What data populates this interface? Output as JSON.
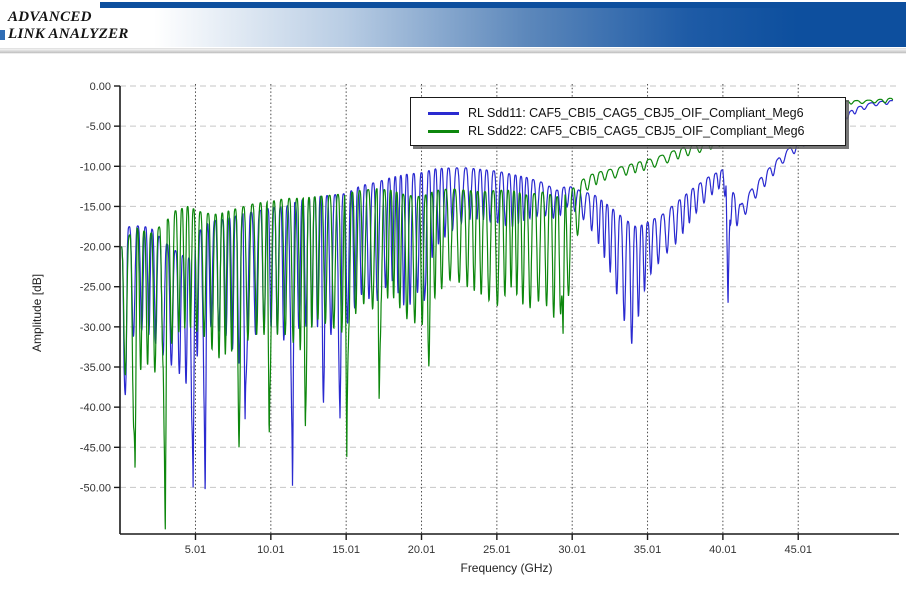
{
  "header": {
    "logo_line1": "ADVANCED",
    "logo_line2": "LINK ANALYZER",
    "banner_color": "#0d4f9e"
  },
  "chart_data": {
    "type": "line",
    "title": "",
    "xlabel": "Frequency (GHz)",
    "ylabel": "Amplitude [dB]",
    "grid": true,
    "legend_position": "top-center",
    "x_axis": {
      "label": "Frequency (GHz)",
      "tick_values": [
        5.01,
        10.01,
        15.01,
        20.01,
        25.01,
        30.01,
        35.01,
        40.01,
        45.01
      ],
      "tick_labels": [
        "5.01",
        "10.01",
        "15.01",
        "20.01",
        "25.01",
        "30.01",
        "35.01",
        "40.01",
        "45.01"
      ],
      "range_ghz": [
        0.01,
        51.3
      ]
    },
    "y_axis": {
      "label": "Amplitude [dB]",
      "tick_values": [
        0,
        -5,
        -10,
        -15,
        -20,
        -25,
        -30,
        -35,
        -40,
        -45,
        -50
      ],
      "tick_labels": [
        "0.00",
        "-5.00",
        "-10.00",
        "-15.00",
        "-20.00",
        "-25.00",
        "-30.00",
        "-35.00",
        "-40.00",
        "-45.00",
        "-50.00"
      ],
      "range_db": [
        -55.8,
        0
      ]
    },
    "series": [
      {
        "name": "RL Sdd11: CAF5_CBI5_CAG5_CBJ5_OIF_Compliant_Meg6",
        "color": "#2a2ad0",
        "description": "Return loss Sdd11, oscillatory; envelope values in dB vs GHz",
        "period_map": [
          [
            0,
            0.48
          ],
          [
            40,
            0.48
          ],
          [
            42,
            0.6
          ],
          [
            51.3,
            0.65
          ]
        ],
        "upper_envelope": [
          [
            0.1,
            -20
          ],
          [
            0.4,
            -17.6
          ],
          [
            1,
            -17.4
          ],
          [
            2,
            -17.6
          ],
          [
            3,
            -19.5
          ],
          [
            4,
            -21
          ],
          [
            4.7,
            -21.5
          ],
          [
            5.3,
            -18
          ],
          [
            6,
            -16.8
          ],
          [
            7,
            -16.6
          ],
          [
            8,
            -16
          ],
          [
            9,
            -15.6
          ],
          [
            10,
            -15.2
          ],
          [
            11,
            -15
          ],
          [
            12,
            -14.2
          ],
          [
            13,
            -13.8
          ],
          [
            14,
            -13.6
          ],
          [
            15,
            -13.4
          ],
          [
            16,
            -12.4
          ],
          [
            17,
            -12
          ],
          [
            18,
            -11.4
          ],
          [
            19,
            -11
          ],
          [
            20,
            -10.8
          ],
          [
            21,
            -10.3
          ],
          [
            22,
            -10.2
          ],
          [
            23,
            -10.2
          ],
          [
            24,
            -10.4
          ],
          [
            25,
            -10.6
          ],
          [
            26,
            -11
          ],
          [
            27,
            -11.4
          ],
          [
            28,
            -12
          ],
          [
            29,
            -13
          ],
          [
            29.7,
            -12.4
          ],
          [
            30.5,
            -13
          ],
          [
            31.5,
            -13.6
          ],
          [
            32.5,
            -15
          ],
          [
            33.5,
            -16.6
          ],
          [
            34.3,
            -17.6
          ],
          [
            35,
            -17
          ],
          [
            36,
            -16
          ],
          [
            37,
            -14.4
          ],
          [
            38,
            -12.8
          ],
          [
            39,
            -11.4
          ],
          [
            40,
            -10.4
          ],
          [
            40.6,
            -13
          ],
          [
            41.2,
            -14.8
          ],
          [
            42,
            -12.6
          ],
          [
            43,
            -10.4
          ],
          [
            44,
            -8.4
          ],
          [
            45,
            -6.8
          ],
          [
            46,
            -5.6
          ],
          [
            47,
            -4.6
          ],
          [
            48,
            -3.6
          ],
          [
            49,
            -2.6
          ],
          [
            50,
            -2
          ],
          [
            51.3,
            -1.8
          ]
        ],
        "lower_envelope": [
          [
            0.1,
            -33
          ],
          [
            0.4,
            -37
          ],
          [
            1,
            -30
          ],
          [
            2,
            -31
          ],
          [
            3,
            -34
          ],
          [
            4,
            -36
          ],
          [
            4.7,
            -38
          ],
          [
            5.3,
            -32
          ],
          [
            6,
            -30
          ],
          [
            7,
            -31
          ],
          [
            8,
            -35
          ],
          [
            9,
            -31
          ],
          [
            10,
            -30
          ],
          [
            11,
            -32
          ],
          [
            12,
            -30
          ],
          [
            13,
            -30
          ],
          [
            14,
            -31
          ],
          [
            15,
            -30
          ],
          [
            16,
            -26
          ],
          [
            17,
            -27
          ],
          [
            18,
            -24
          ],
          [
            19,
            -28
          ],
          [
            20,
            -25
          ],
          [
            21,
            -20
          ],
          [
            22,
            -18
          ],
          [
            23,
            -16.6
          ],
          [
            24,
            -16.6
          ],
          [
            25,
            -17
          ],
          [
            26,
            -17.6
          ],
          [
            27,
            -16.6
          ],
          [
            28,
            -16
          ],
          [
            29,
            -16.6
          ],
          [
            29.7,
            -15
          ],
          [
            30.5,
            -16
          ],
          [
            31.5,
            -18.5
          ],
          [
            32.5,
            -23
          ],
          [
            33.3,
            -28
          ],
          [
            33.9,
            -32.6
          ],
          [
            34.5,
            -28
          ],
          [
            35,
            -24
          ],
          [
            36,
            -21.4
          ],
          [
            37,
            -19.4
          ],
          [
            38,
            -16.4
          ],
          [
            39,
            -14
          ],
          [
            40,
            -12.4
          ],
          [
            40.6,
            -18
          ],
          [
            41.2,
            -17
          ],
          [
            42,
            -14.4
          ],
          [
            43,
            -12
          ],
          [
            44,
            -9.6
          ],
          [
            45,
            -8
          ],
          [
            46,
            -6.6
          ],
          [
            47,
            -5.4
          ],
          [
            48,
            -4.4
          ],
          [
            49,
            -3.2
          ],
          [
            50,
            -2.5
          ],
          [
            51.3,
            -2.2
          ]
        ],
        "notches": [
          [
            0.35,
            -38.5
          ],
          [
            4.85,
            -50
          ],
          [
            5.65,
            -51.3
          ],
          [
            8.3,
            -41.5
          ],
          [
            11.45,
            -49.8
          ],
          [
            13.5,
            -39.8
          ],
          [
            14.6,
            -41.4
          ],
          [
            20.2,
            -27
          ],
          [
            40.35,
            -27.6
          ]
        ]
      },
      {
        "name": "RL Sdd22: CAF5_CBI5_CAG5_CBJ5_OIF_Compliant_Meg6",
        "color": "#0d870d",
        "description": "Return loss Sdd22, oscillatory; envelope values in dB vs GHz",
        "period_map": [
          [
            0,
            0.48
          ],
          [
            30,
            0.5
          ],
          [
            32,
            0.7
          ],
          [
            51.3,
            0.7
          ]
        ],
        "upper_envelope": [
          [
            0.1,
            -20
          ],
          [
            1,
            -17.6
          ],
          [
            2,
            -18.4
          ],
          [
            3,
            -17
          ],
          [
            3.6,
            -15.6
          ],
          [
            4.5,
            -15
          ],
          [
            5.5,
            -15.8
          ],
          [
            6.5,
            -16
          ],
          [
            7.5,
            -15.4
          ],
          [
            9,
            -14.6
          ],
          [
            10,
            -14.4
          ],
          [
            11,
            -14
          ],
          [
            12,
            -14
          ],
          [
            13,
            -13.8
          ],
          [
            14,
            -13.6
          ],
          [
            15,
            -13.4
          ],
          [
            16,
            -13
          ],
          [
            17,
            -12.8
          ],
          [
            18,
            -13
          ],
          [
            19,
            -13.6
          ],
          [
            20,
            -13.8
          ],
          [
            21,
            -13
          ],
          [
            22,
            -12.8
          ],
          [
            23,
            -13
          ],
          [
            24,
            -13.2
          ],
          [
            25,
            -13
          ],
          [
            26,
            -13
          ],
          [
            27,
            -13.6
          ],
          [
            28,
            -13.2
          ],
          [
            29,
            -13.8
          ],
          [
            29.8,
            -13.2
          ],
          [
            30.5,
            -12
          ],
          [
            31,
            -11.2
          ],
          [
            32,
            -10.6
          ],
          [
            33,
            -10.2
          ],
          [
            34,
            -9.7
          ],
          [
            35,
            -9.2
          ],
          [
            36,
            -8.6
          ],
          [
            37,
            -7.9
          ],
          [
            38,
            -7.3
          ],
          [
            39,
            -6.8
          ],
          [
            40,
            -6.2
          ],
          [
            41,
            -5.6
          ],
          [
            42,
            -5
          ],
          [
            43,
            -4.4
          ],
          [
            44,
            -3.9
          ],
          [
            45,
            -3.4
          ],
          [
            46,
            -2.9
          ],
          [
            47,
            -2.5
          ],
          [
            48,
            -1.9
          ],
          [
            49,
            -1.8
          ],
          [
            50,
            -1.75
          ],
          [
            51.3,
            -1.5
          ]
        ],
        "lower_envelope": [
          [
            0.1,
            -34
          ],
          [
            0.9,
            -40.5
          ],
          [
            1.6,
            -33
          ],
          [
            2,
            -36
          ],
          [
            3,
            -35
          ],
          [
            3.6,
            -31
          ],
          [
            4.5,
            -30
          ],
          [
            5.5,
            -31
          ],
          [
            6.5,
            -34
          ],
          [
            7.5,
            -33
          ],
          [
            9,
            -31
          ],
          [
            10,
            -31
          ],
          [
            11,
            -31
          ],
          [
            12,
            -33
          ],
          [
            13,
            -29
          ],
          [
            14,
            -30
          ],
          [
            15,
            -31
          ],
          [
            16,
            -27
          ],
          [
            17,
            -28
          ],
          [
            18,
            -26
          ],
          [
            19,
            -29
          ],
          [
            20,
            -30
          ],
          [
            21,
            -26
          ],
          [
            22,
            -24
          ],
          [
            23,
            -25
          ],
          [
            24,
            -26
          ],
          [
            25,
            -27.5
          ],
          [
            26,
            -25
          ],
          [
            27,
            -28
          ],
          [
            28,
            -26.5
          ],
          [
            29,
            -29.5
          ],
          [
            29.8,
            -26
          ],
          [
            30.5,
            -17
          ],
          [
            31,
            -13
          ],
          [
            32,
            -11.8
          ],
          [
            33,
            -11.4
          ],
          [
            34,
            -10.9
          ],
          [
            35,
            -10.4
          ],
          [
            36,
            -9.8
          ],
          [
            37,
            -9.1
          ],
          [
            38,
            -8.5
          ],
          [
            39,
            -8
          ],
          [
            40,
            -7.4
          ],
          [
            41,
            -6.8
          ],
          [
            42,
            -6.2
          ],
          [
            43,
            -5.6
          ],
          [
            44,
            -5.1
          ],
          [
            45,
            -4.6
          ],
          [
            46,
            -4.1
          ],
          [
            47,
            -3.7
          ],
          [
            48,
            -2.3
          ],
          [
            49,
            -2.2
          ],
          [
            50,
            -2.1
          ],
          [
            51.3,
            -2.1
          ]
        ],
        "notches": [
          [
            1.0,
            -48.3
          ],
          [
            3.0,
            -56.5
          ],
          [
            7.9,
            -45.5
          ],
          [
            9.9,
            -44
          ],
          [
            12.3,
            -43
          ],
          [
            15.05,
            -46.2
          ],
          [
            17.2,
            -39.8
          ],
          [
            20.5,
            -35.2
          ],
          [
            29.4,
            -31.5
          ]
        ]
      }
    ],
    "colors": {
      "vertical_grid": "#4d4d4d",
      "horizontal_grid": "#c6c6c6",
      "axis": "#1a1a1a",
      "tick_text": "#333333"
    }
  }
}
